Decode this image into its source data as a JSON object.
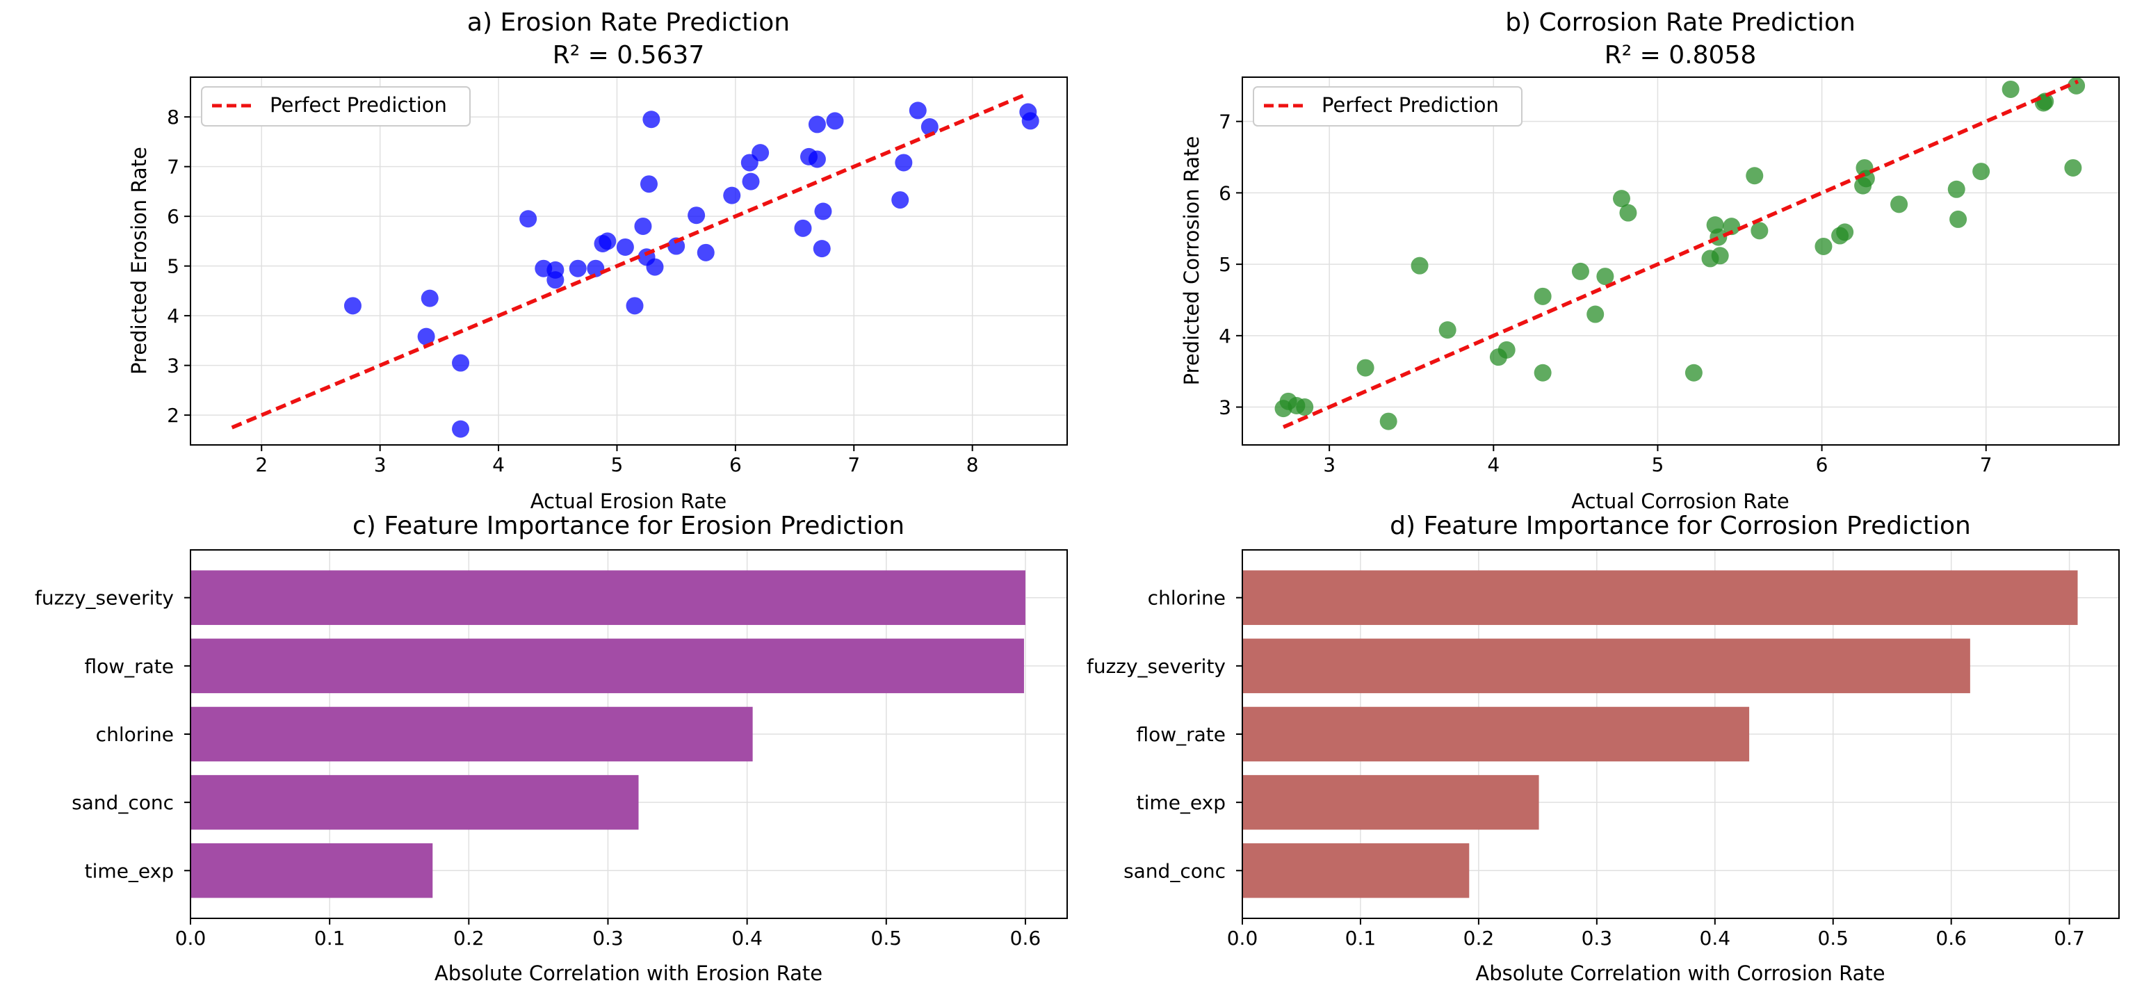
{
  "figure": {
    "background": "#ffffff",
    "grid_color": "#e0e0e0"
  },
  "chart_data": [
    {
      "id": "a",
      "type": "scatter",
      "title": "a) Erosion Rate Prediction",
      "subtitle": "R² = 0.5637",
      "xlabel": "Actual Erosion Rate",
      "ylabel": "Predicted Erosion Rate",
      "xlim": [
        1.4,
        8.8
      ],
      "ylim": [
        1.4,
        8.8
      ],
      "xticks": [
        2,
        3,
        4,
        5,
        6,
        7,
        8
      ],
      "yticks": [
        2,
        3,
        4,
        5,
        6,
        7,
        8
      ],
      "grid": true,
      "marker_color": "#0000ff",
      "line_color": "#ee1111",
      "legend": {
        "placement": "top-left",
        "label": "Perfect Prediction"
      },
      "reference_line": {
        "name": "Perfect Prediction",
        "x": [
          1.75,
          8.45
        ],
        "y": [
          1.75,
          8.45
        ]
      },
      "points": [
        [
          2.77,
          4.2
        ],
        [
          3.39,
          3.58
        ],
        [
          3.42,
          4.35
        ],
        [
          3.68,
          3.05
        ],
        [
          3.68,
          1.72
        ],
        [
          4.25,
          5.95
        ],
        [
          4.38,
          4.95
        ],
        [
          4.48,
          4.92
        ],
        [
          4.48,
          4.72
        ],
        [
          4.67,
          4.95
        ],
        [
          4.82,
          4.95
        ],
        [
          4.88,
          5.45
        ],
        [
          4.92,
          5.5
        ],
        [
          5.07,
          5.38
        ],
        [
          5.15,
          4.2
        ],
        [
          5.22,
          5.8
        ],
        [
          5.25,
          5.18
        ],
        [
          5.27,
          6.65
        ],
        [
          5.29,
          7.95
        ],
        [
          5.32,
          4.98
        ],
        [
          5.5,
          5.4
        ],
        [
          5.67,
          6.02
        ],
        [
          5.75,
          5.27
        ],
        [
          5.97,
          6.42
        ],
        [
          6.12,
          7.08
        ],
        [
          6.13,
          6.7
        ],
        [
          6.21,
          7.28
        ],
        [
          6.57,
          5.76
        ],
        [
          6.62,
          7.2
        ],
        [
          6.69,
          7.85
        ],
        [
          6.69,
          7.15
        ],
        [
          6.73,
          5.35
        ],
        [
          6.74,
          6.1
        ],
        [
          6.84,
          7.92
        ],
        [
          7.39,
          6.33
        ],
        [
          7.42,
          7.08
        ],
        [
          7.54,
          8.13
        ],
        [
          7.64,
          7.8
        ],
        [
          8.47,
          8.1
        ],
        [
          8.49,
          7.92
        ]
      ]
    },
    {
      "id": "b",
      "type": "scatter",
      "title": "b) Corrosion Rate Prediction",
      "subtitle": "R² = 0.8058",
      "xlabel": "Actual Corrosion Rate",
      "ylabel": "Predicted Corrosion Rate",
      "xlim": [
        2.47,
        7.81
      ],
      "ylim": [
        2.47,
        7.62
      ],
      "xticks": [
        3,
        4,
        5,
        6,
        7
      ],
      "yticks": [
        3,
        4,
        5,
        6,
        7
      ],
      "grid": true,
      "marker_color": "#228b22",
      "line_color": "#ee1111",
      "legend": {
        "placement": "top-left",
        "label": "Perfect Prediction"
      },
      "reference_line": {
        "name": "Perfect Prediction",
        "x": [
          2.72,
          7.56
        ],
        "y": [
          2.72,
          7.56
        ]
      },
      "points": [
        [
          2.72,
          2.98
        ],
        [
          2.75,
          3.08
        ],
        [
          2.8,
          3.02
        ],
        [
          2.85,
          3.0
        ],
        [
          3.22,
          3.55
        ],
        [
          3.36,
          2.8
        ],
        [
          3.55,
          4.98
        ],
        [
          3.72,
          4.08
        ],
        [
          4.03,
          3.7
        ],
        [
          4.08,
          3.8
        ],
        [
          4.3,
          4.55
        ],
        [
          4.3,
          3.48
        ],
        [
          4.53,
          4.9
        ],
        [
          4.62,
          4.3
        ],
        [
          4.68,
          4.83
        ],
        [
          4.78,
          5.92
        ],
        [
          4.82,
          5.72
        ],
        [
          5.22,
          3.48
        ],
        [
          5.32,
          5.08
        ],
        [
          5.35,
          5.55
        ],
        [
          5.37,
          5.38
        ],
        [
          5.38,
          5.12
        ],
        [
          5.45,
          5.53
        ],
        [
          5.59,
          6.24
        ],
        [
          5.62,
          5.47
        ],
        [
          6.01,
          5.25
        ],
        [
          6.11,
          5.4
        ],
        [
          6.14,
          5.45
        ],
        [
          6.25,
          6.1
        ],
        [
          6.26,
          6.35
        ],
        [
          6.27,
          6.2
        ],
        [
          6.47,
          5.84
        ],
        [
          6.82,
          6.05
        ],
        [
          6.83,
          5.63
        ],
        [
          6.97,
          6.3
        ],
        [
          7.15,
          7.45
        ],
        [
          7.35,
          7.26
        ],
        [
          7.36,
          7.28
        ],
        [
          7.53,
          6.35
        ],
        [
          7.55,
          7.5
        ]
      ]
    },
    {
      "id": "c",
      "type": "bar",
      "orientation": "horizontal",
      "title": "c) Feature Importance for Erosion Prediction",
      "xlabel": "Absolute Correlation with Erosion Rate",
      "ylabel": "",
      "xlim": [
        0,
        0.63
      ],
      "xticks": [
        0.0,
        0.1,
        0.2,
        0.3,
        0.4,
        0.5,
        0.6
      ],
      "grid": true,
      "bar_color": "#a34ca6",
      "categories": [
        "fuzzy_severity",
        "flow_rate",
        "chlorine",
        "sand_conc",
        "time_exp"
      ],
      "values": [
        0.6,
        0.599,
        0.404,
        0.322,
        0.174
      ]
    },
    {
      "id": "d",
      "type": "bar",
      "orientation": "horizontal",
      "title": "d) Feature Importance for Corrosion Prediction",
      "xlabel": "Absolute Correlation with Corrosion Rate",
      "ylabel": "",
      "xlim": [
        0,
        0.742
      ],
      "xticks": [
        0.0,
        0.1,
        0.2,
        0.3,
        0.4,
        0.5,
        0.6,
        0.7
      ],
      "grid": true,
      "bar_color": "#bf6a66",
      "categories": [
        "chlorine",
        "fuzzy_severity",
        "flow_rate",
        "time_exp",
        "sand_conc"
      ],
      "values": [
        0.707,
        0.616,
        0.429,
        0.251,
        0.192
      ]
    }
  ]
}
